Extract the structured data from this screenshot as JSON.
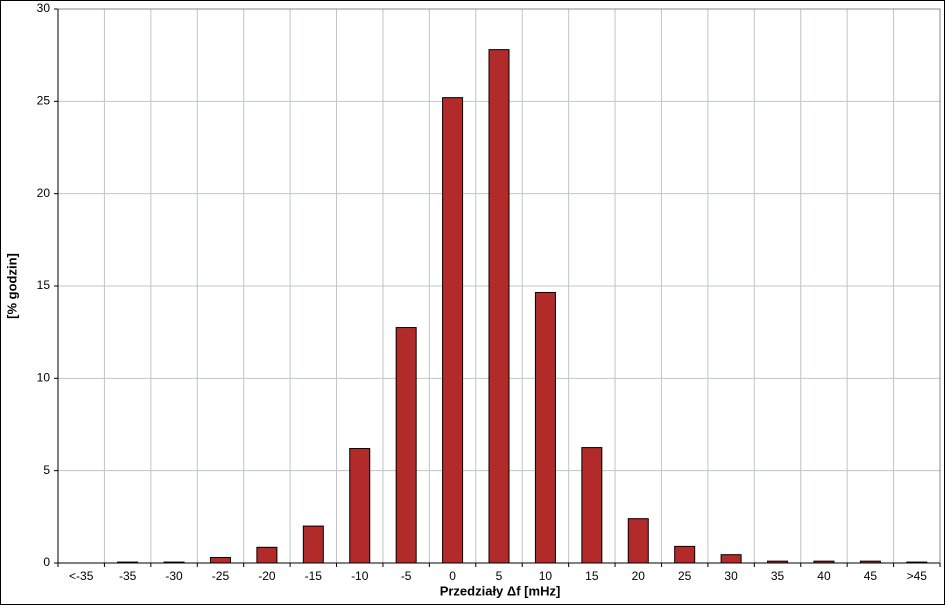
{
  "chart_data": {
    "type": "bar",
    "x_label": "Przedziały Δf [mHz]",
    "y_label": "[% godzin]",
    "categories": [
      "<-35",
      "-35",
      "-30",
      "-25",
      "-20",
      "-15",
      "-10",
      "-5",
      "0",
      "5",
      "10",
      "15",
      "20",
      "25",
      "30",
      "35",
      "40",
      "45",
      ">45"
    ],
    "values": [
      0,
      0.05,
      0.05,
      0.3,
      0.85,
      2.0,
      6.2,
      12.75,
      25.2,
      27.8,
      14.65,
      6.25,
      2.4,
      0.9,
      0.45,
      0.1,
      0.1,
      0.1,
      0.05
    ],
    "color": "#b22a2a",
    "ylim": [
      0,
      30
    ],
    "yticks": [
      0,
      5,
      10,
      15,
      20,
      25,
      30
    ],
    "grid": true
  }
}
